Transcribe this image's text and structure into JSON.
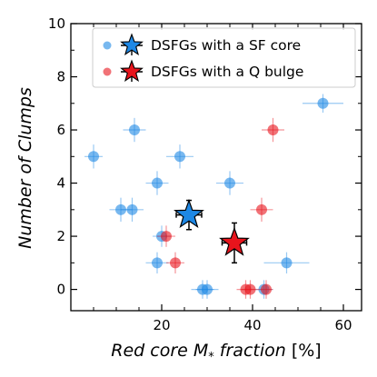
{
  "chart_data": {
    "type": "scatter",
    "title": "",
    "xlabel_italic": "Red core M",
    "xlabel_sub": "*",
    "xlabel_italic2": " fraction",
    "xlabel_unit": " [%]",
    "ylabel": "Number of Clumps",
    "xlim": [
      0,
      64
    ],
    "ylim": [
      -0.8,
      10
    ],
    "xticks": [
      20,
      40,
      60
    ],
    "yticks": [
      0,
      2,
      4,
      6,
      8,
      10
    ],
    "grid": false,
    "legend_position": "top-right",
    "series": [
      {
        "name": "DSFGs with a SF core",
        "color": "#1e88e5",
        "points": [
          {
            "x": 55.5,
            "y": 7,
            "xerr": 4.5,
            "yerr": 0.35
          },
          {
            "x": 14.0,
            "y": 6,
            "xerr": 2.5,
            "yerr": 0.45
          },
          {
            "x": 5.0,
            "y": 5,
            "xerr": 2.0,
            "yerr": 0.45
          },
          {
            "x": 24.0,
            "y": 5,
            "xerr": 3.0,
            "yerr": 0.45
          },
          {
            "x": 19.0,
            "y": 4,
            "xerr": 2.5,
            "yerr": 0.45
          },
          {
            "x": 35.0,
            "y": 4,
            "xerr": 3.0,
            "yerr": 0.45
          },
          {
            "x": 11.0,
            "y": 3,
            "xerr": 2.5,
            "yerr": 0.45
          },
          {
            "x": 13.5,
            "y": 3,
            "xerr": 2.5,
            "yerr": 0.45
          },
          {
            "x": 20.0,
            "y": 2,
            "xerr": 2.0,
            "yerr": 0.4
          },
          {
            "x": 19.0,
            "y": 1,
            "xerr": 2.5,
            "yerr": 0.4
          },
          {
            "x": 47.5,
            "y": 1,
            "xerr": 5.0,
            "yerr": 0.4
          },
          {
            "x": 29.0,
            "y": 0,
            "xerr": 2.5,
            "yerr": 0.35
          },
          {
            "x": 30.0,
            "y": 0,
            "xerr": 2.5,
            "yerr": 0.35
          },
          {
            "x": 42.5,
            "y": 0,
            "xerr": 2.0,
            "yerr": 0.35
          }
        ],
        "summary": {
          "x": 26.0,
          "y": 2.8,
          "xerr": 2.8,
          "yerr": 0.55
        }
      },
      {
        "name": "DSFGs with a Q bulge",
        "color": "#e8141c",
        "points": [
          {
            "x": 44.5,
            "y": 6,
            "xerr": 2.5,
            "yerr": 0.45
          },
          {
            "x": 42.0,
            "y": 3,
            "xerr": 2.5,
            "yerr": 0.45
          },
          {
            "x": 21.0,
            "y": 2,
            "xerr": 2.0,
            "yerr": 0.4
          },
          {
            "x": 23.0,
            "y": 1,
            "xerr": 2.0,
            "yerr": 0.4
          },
          {
            "x": 38.5,
            "y": 0,
            "xerr": 2.0,
            "yerr": 0.35
          },
          {
            "x": 39.5,
            "y": 0,
            "xerr": 2.0,
            "yerr": 0.35
          },
          {
            "x": 43.0,
            "y": 0,
            "xerr": 1.5,
            "yerr": 0.35
          }
        ],
        "summary": {
          "x": 36.0,
          "y": 1.75,
          "xerr": 2.7,
          "yerr": 0.75
        }
      }
    ]
  }
}
